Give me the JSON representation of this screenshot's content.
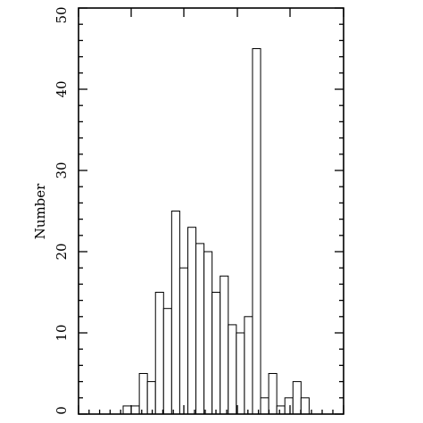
{
  "chart_data": {
    "type": "bar",
    "title": "",
    "xlabel": "",
    "ylabel": "Number",
    "ylim": [
      0,
      50
    ],
    "y_ticks": [
      "0",
      "10",
      "20",
      "30",
      "40",
      "50"
    ],
    "grid": false,
    "values": [
      1,
      1,
      5,
      4,
      15,
      13,
      25,
      18,
      23,
      21,
      20,
      15,
      17,
      11,
      10,
      12,
      45,
      2,
      5,
      1,
      2,
      4,
      2
    ],
    "bars_start_index": 0
  }
}
